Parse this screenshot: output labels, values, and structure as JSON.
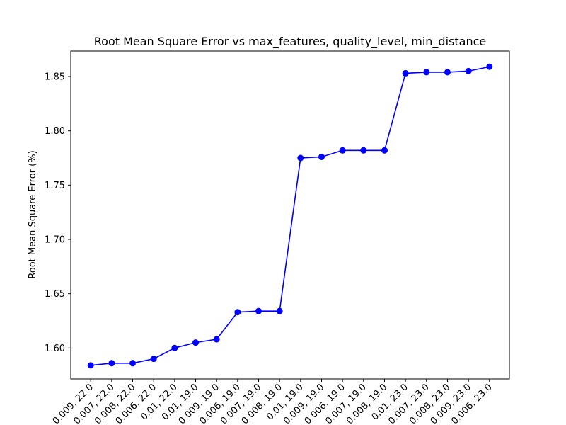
{
  "chart_data": {
    "type": "line",
    "title": "Root Mean Square Error vs max_features, quality_level, min_distance",
    "xlabel": "",
    "ylabel": "Root Mean Square Error (%)",
    "ylim": [
      1.5715,
      1.8735
    ],
    "yticks": [
      1.6,
      1.65,
      1.7,
      1.75,
      1.8,
      1.85
    ],
    "ytick_labels": [
      "1.60",
      "1.65",
      "1.70",
      "1.75",
      "1.80",
      "1.85"
    ],
    "grid": false,
    "legend": "none",
    "line_color": "#0000ff",
    "categories": [
      "0.009, 22.0",
      "0.007, 22.0",
      "0.008, 22.0",
      "0.006, 22.0",
      "0.01, 22.0",
      "0.01, 19.0",
      "0.009, 19.0",
      "0.006, 19.0",
      "0.007, 19.0",
      "0.008, 19.0",
      "0.01, 19.0",
      "0.009, 19.0",
      "0.006, 19.0",
      "0.007, 19.0",
      "0.008, 19.0",
      "0.01, 23.0",
      "0.007, 23.0",
      "0.008, 23.0",
      "0.009, 23.0",
      "0.006, 23.0"
    ],
    "values": [
      1.584,
      1.586,
      1.586,
      1.59,
      1.6,
      1.605,
      1.608,
      1.633,
      1.634,
      1.634,
      1.775,
      1.776,
      1.782,
      1.782,
      1.782,
      1.853,
      1.854,
      1.854,
      1.855,
      1.859
    ]
  }
}
